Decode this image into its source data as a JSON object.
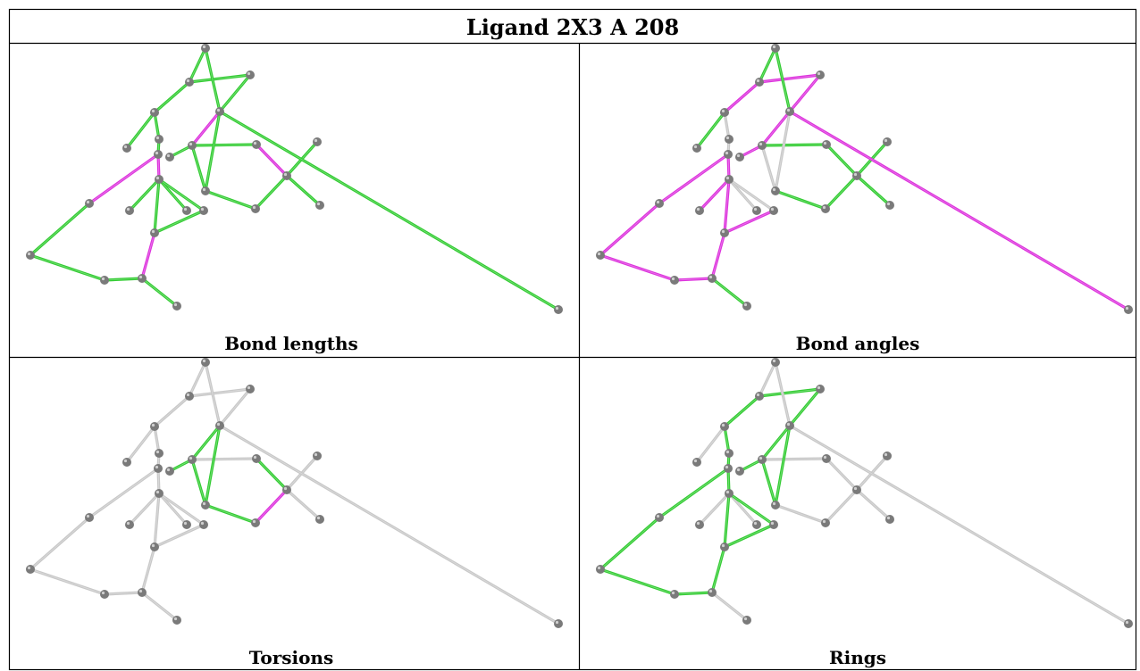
{
  "title": "Ligand 2X3 A 208",
  "colors": {
    "outlier": "#dd33dd",
    "ok": "#33cc33",
    "neutral": "#c8c8c8",
    "atom": "#7a7a7a",
    "border": "#000000"
  },
  "panels": [
    {
      "caption": "Bond lengths",
      "mode": "lengths"
    },
    {
      "caption": "Bond angles",
      "mode": "angles"
    },
    {
      "caption": "Torsions",
      "mode": "torsions"
    },
    {
      "caption": "Rings",
      "mode": "rings"
    }
  ]
}
